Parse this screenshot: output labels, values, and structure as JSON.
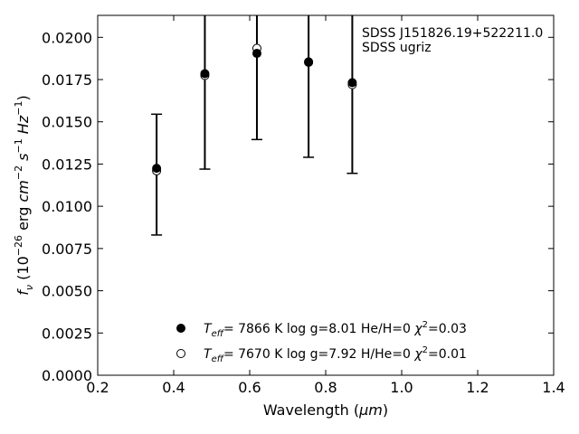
{
  "chart_data": {
    "type": "scatter",
    "xlabel": "Wavelength (μm)",
    "ylabel": "f_ν (10^-26 erg cm^-2 s^-1 Hz^-1)",
    "xlim": [
      0.2,
      1.4
    ],
    "ylim": [
      0.0,
      0.0213
    ],
    "x_ticks": [
      "0.2",
      "0.4",
      "0.6",
      "0.8",
      "1.0",
      "1.2",
      "1.4"
    ],
    "y_ticks": [
      "0.0000",
      "0.0025",
      "0.0050",
      "0.0075",
      "0.0100",
      "0.0125",
      "0.0150",
      "0.0175",
      "0.0200"
    ],
    "annotation": [
      "SDSS J151826.19+522211.0",
      "SDSS ugriz"
    ],
    "observed": {
      "x": [
        0.355,
        0.482,
        0.619,
        0.755,
        0.87
      ],
      "y": [
        0.0121,
        0.01774,
        0.01935,
        0.01852,
        0.0172
      ],
      "yerr_low": [
        0.0083,
        0.0122,
        0.01395,
        0.0129,
        0.01195
      ],
      "yerr_high": [
        0.01545,
        0.0235,
        0.0245,
        0.024,
        0.0245
      ]
    },
    "series": [
      {
        "marker": "filled",
        "x": [
          0.355,
          0.482,
          0.619,
          0.755,
          0.87
        ],
        "y": [
          0.01225,
          0.01785,
          0.01905,
          0.01855,
          0.01732
        ],
        "legend": [
          "Teff",
          "=  7866 K  log g=8.01  He/H=0  ",
          "=0.03"
        ]
      },
      {
        "marker": "open",
        "x": [
          0.355,
          0.482,
          0.619,
          0.755,
          0.87
        ],
        "y": [
          0.0121,
          0.01774,
          0.01935,
          0.01852,
          0.0172
        ],
        "legend": [
          "Teff",
          "=  7670 K  log g=7.92  H/He=0  ",
          "=0.01"
        ]
      }
    ],
    "grid": false,
    "legend_position": "bottom-center"
  }
}
